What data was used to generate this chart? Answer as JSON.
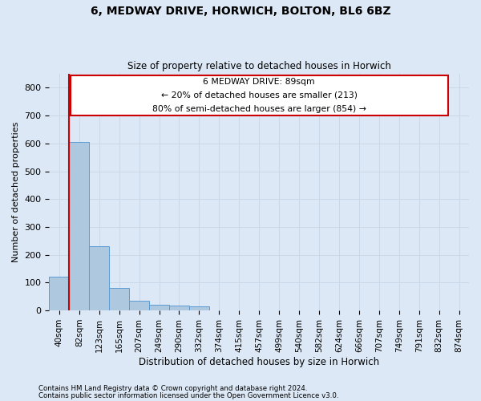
{
  "title_line1": "6, MEDWAY DRIVE, HORWICH, BOLTON, BL6 6BZ",
  "title_line2": "Size of property relative to detached houses in Horwich",
  "xlabel": "Distribution of detached houses by size in Horwich",
  "ylabel": "Number of detached properties",
  "categories": [
    "40sqm",
    "82sqm",
    "123sqm",
    "165sqm",
    "207sqm",
    "249sqm",
    "290sqm",
    "332sqm",
    "374sqm",
    "415sqm",
    "457sqm",
    "499sqm",
    "540sqm",
    "582sqm",
    "624sqm",
    "666sqm",
    "707sqm",
    "749sqm",
    "791sqm",
    "832sqm",
    "874sqm"
  ],
  "bar_heights": [
    120,
    605,
    230,
    80,
    35,
    20,
    18,
    15,
    0,
    0,
    0,
    0,
    0,
    0,
    0,
    0,
    0,
    0,
    0,
    0,
    0
  ],
  "bar_color": "#aec8e0",
  "bar_edge_color": "#5b9bd5",
  "grid_color": "#c8d8e8",
  "background_color": "#dce8f5",
  "annotation_title": "6 MEDWAY DRIVE: 89sqm",
  "annotation_line1": "← 20% of detached houses are smaller (213)",
  "annotation_line2": "80% of semi-detached houses are larger (854) →",
  "box_facecolor": "white",
  "box_edgecolor": "#cc0000",
  "red_line_color": "#cc0000",
  "ylim": [
    0,
    850
  ],
  "yticks": [
    0,
    100,
    200,
    300,
    400,
    500,
    600,
    700,
    800
  ],
  "footer1": "Contains HM Land Registry data © Crown copyright and database right 2024.",
  "footer2": "Contains public sector information licensed under the Open Government Licence v3.0."
}
